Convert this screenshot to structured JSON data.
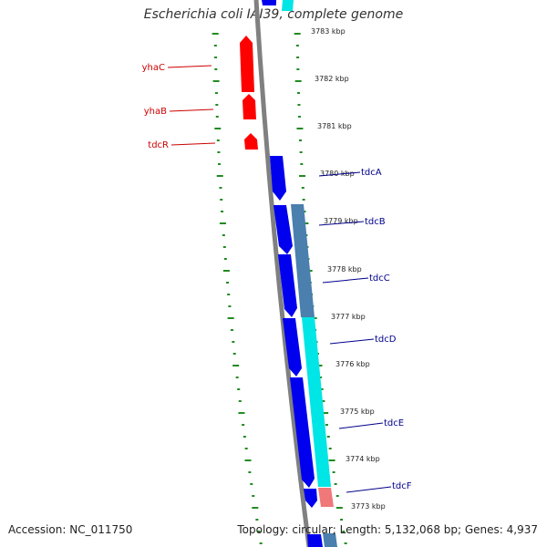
{
  "title": "Escherichia coli IAI39, complete genome",
  "footer": {
    "accession": "Accession: NC_011750",
    "summary": "Topology: circular; Length: 5,132,068 bp; Genes: 4,937"
  },
  "colors": {
    "backbone": "#808080",
    "forward_gene": "#0000ee",
    "reverse_gene": "#ff0000",
    "cds_steel": "#4a7fae",
    "cds_cyan": "#00e5e5",
    "cds_salmon": "#f07878",
    "tick": "#228b22",
    "forward_label": "#00008b",
    "reverse_label": "#cc0000"
  },
  "scale_ticks": [
    {
      "label": "3783 kbp",
      "kbp": 3783
    },
    {
      "label": "3782 kbp",
      "kbp": 3782
    },
    {
      "label": "3781 kbp",
      "kbp": 3781
    },
    {
      "label": "3780 kbp",
      "kbp": 3780
    },
    {
      "label": "3779 kbp",
      "kbp": 3779
    },
    {
      "label": "3778 kbp",
      "kbp": 3778
    },
    {
      "label": "3777 kbp",
      "kbp": 3777
    },
    {
      "label": "3776 kbp",
      "kbp": 3776
    },
    {
      "label": "3775 kbp",
      "kbp": 3775
    },
    {
      "label": "3774 kbp",
      "kbp": 3774
    },
    {
      "label": "3773 kbp",
      "kbp": 3773
    }
  ],
  "forward_genes": [
    {
      "name": "tdcA"
    },
    {
      "name": "tdcB"
    },
    {
      "name": "tdcC"
    },
    {
      "name": "tdcD"
    },
    {
      "name": "tdcE"
    },
    {
      "name": "tdcF"
    }
  ],
  "reverse_genes": [
    {
      "name": "yhaC"
    },
    {
      "name": "yhaB"
    },
    {
      "name": "tdcR"
    }
  ]
}
